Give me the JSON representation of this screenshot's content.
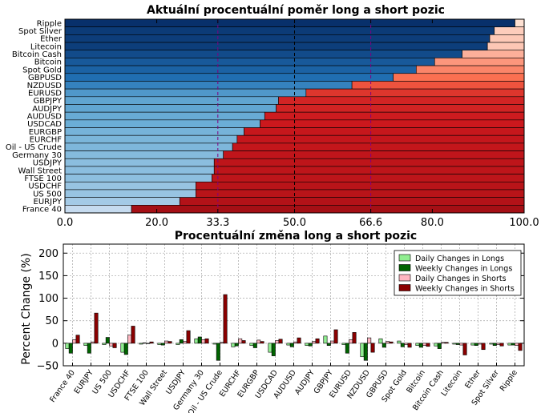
{
  "chart_data": [
    {
      "type": "bar",
      "orientation": "horizontal",
      "stacked": true,
      "title": "Aktuální procentuální poměr long a short pozic",
      "categories": [
        "Ripple",
        "Spot Silver",
        "Ether",
        "Litecoin",
        "Bitcoin Cash",
        "Bitcoin",
        "Spot Gold",
        "GBPUSD",
        "NZDUSD",
        "EURUSD",
        "GBPJPY",
        "AUDJPY",
        "AUDUSD",
        "USDCAD",
        "EURGBP",
        "EURCHF",
        "Oil - US Crude",
        "Germany 30",
        "USDJPY",
        "Wall Street",
        "FTSE 100",
        "USDCHF",
        "US 500",
        "EURJPY",
        "France 40"
      ],
      "series": [
        {
          "role": "long",
          "values": [
            98,
            93.5,
            92.5,
            92,
            86.5,
            80.5,
            76.5,
            71.5,
            62.5,
            52.5,
            46.5,
            46,
            43.5,
            42.5,
            39,
            37.5,
            36.5,
            34.5,
            32.5,
            32.5,
            32,
            28.5,
            28.5,
            25,
            14.5
          ]
        },
        {
          "role": "short",
          "values": [
            2,
            6.5,
            7.5,
            8,
            13.5,
            19.5,
            23.5,
            28.5,
            37.5,
            47.5,
            53.5,
            54,
            56.5,
            57.5,
            61,
            62.5,
            63.5,
            65.5,
            67.5,
            67.5,
            68,
            71.5,
            71.5,
            75,
            85.5
          ]
        }
      ],
      "xlim": [
        0,
        100
      ],
      "xticks": [
        "0.0",
        "20.0",
        "33.3",
        "50.0",
        "66.6",
        "80.0",
        "100.0"
      ],
      "reference_lines": [
        {
          "value": 33.3,
          "color": "#800080",
          "style": "dashed"
        },
        {
          "value": 50.0,
          "color": "#000000",
          "style": "dashed"
        },
        {
          "value": 66.6,
          "color": "#800080",
          "style": "dashed"
        }
      ],
      "colors": {
        "long_scale": [
          "#08306b",
          "#2171b5",
          "#6baed6",
          "#c6dbef"
        ],
        "short_scale": [
          "#fde0d2",
          "#fb6a4a",
          "#cb181d",
          "#a50f15"
        ],
        "purple_ticks": "#800080"
      }
    },
    {
      "type": "bar",
      "title": "Procentuální změna long a short pozic",
      "ylabel": "Percent Change (%)",
      "ylim": [
        -50,
        220
      ],
      "yticks": [
        "−50",
        "0",
        "50",
        "100",
        "150",
        "200"
      ],
      "grid": true,
      "legend": "top-right",
      "categories": [
        "France 40",
        "EURJPY",
        "US 500",
        "USDCHF",
        "FTSE 100",
        "Wall Street",
        "USDJPY",
        "Germany 30",
        "Oil - US Crude",
        "EURCHF",
        "EURGBP",
        "USDCAD",
        "AUDUSD",
        "AUDJPY",
        "GBPJPY",
        "EURUSD",
        "NZDUSD",
        "GBPUSD",
        "Spot Gold",
        "Bitcoin",
        "Bitcoin Cash",
        "Litecoin",
        "Ether",
        "Spot Silver",
        "Ripple"
      ],
      "series": [
        {
          "name": "Daily Changes in Longs",
          "color": "#90ee90",
          "values": [
            -12,
            -5,
            -3,
            -20,
            -2,
            -3,
            -3,
            10,
            -2,
            -8,
            -5,
            -20,
            -4,
            -5,
            16,
            -3,
            -30,
            10,
            5,
            -5,
            -6,
            -2,
            -4,
            -2,
            -4
          ]
        },
        {
          "name": "Weekly Changes in Longs",
          "color": "#006400",
          "values": [
            -22,
            -22,
            13,
            -25,
            1,
            -4,
            8,
            14,
            -38,
            -6,
            -10,
            -28,
            -8,
            -6,
            -5,
            -22,
            -38,
            -9,
            -8,
            -9,
            -12,
            -3,
            -5,
            -5,
            -4
          ]
        },
        {
          "name": "Daily Changes in Shorts",
          "color": "#ffb6c1",
          "values": [
            8,
            3,
            -6,
            18,
            -1,
            5,
            4,
            8,
            2,
            10,
            7,
            6,
            3,
            4,
            5,
            8,
            12,
            4,
            -3,
            -5,
            2,
            -4,
            -2,
            -3,
            -5
          ]
        },
        {
          "name": "Weekly Changes in Shorts",
          "color": "#8b0000",
          "values": [
            18,
            67,
            -10,
            38,
            3,
            4,
            28,
            10,
            108,
            6,
            4,
            9,
            12,
            10,
            30,
            24,
            -20,
            3,
            -9,
            -7,
            2,
            -26,
            -14,
            -6,
            -16
          ]
        }
      ]
    }
  ]
}
